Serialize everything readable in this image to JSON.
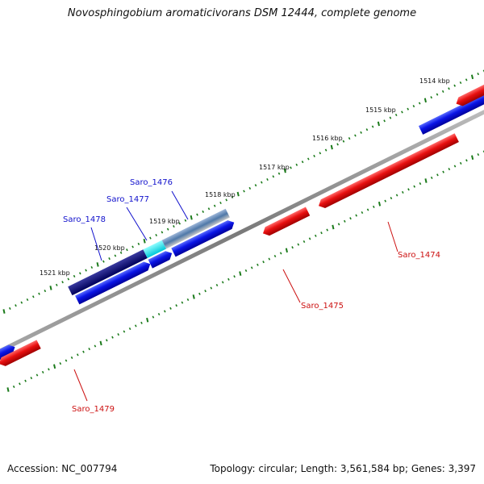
{
  "title": "Novosphingobium aromaticivorans DSM 12444, complete genome",
  "footer": {
    "accession": "Accession: NC_007794",
    "summary": "Topology: circular; Length: 3,561,584 bp; Genes: 3,397"
  },
  "ruler_labels": [
    "1514 kbp",
    "1515 kbp",
    "1516 kbp",
    "1517 kbp",
    "1518 kbp",
    "1519 kbp",
    "1520 kbp",
    "1521 kbp"
  ],
  "gene_labels": {
    "saro_1474": "Saro_1474",
    "saro_1475": "Saro_1475",
    "saro_1476": "Saro_1476",
    "saro_1477": "Saro_1477",
    "saro_1478": "Saro_1478",
    "saro_1479": "Saro_1479"
  },
  "colors": {
    "forward_label": "#1010cc",
    "reverse_label": "#cc1010",
    "forward_gene": "#0a14e6",
    "reverse_gene": "#e81010",
    "backbone": "#8c8c8c",
    "ruler_tick": "#1a7a1a"
  }
}
